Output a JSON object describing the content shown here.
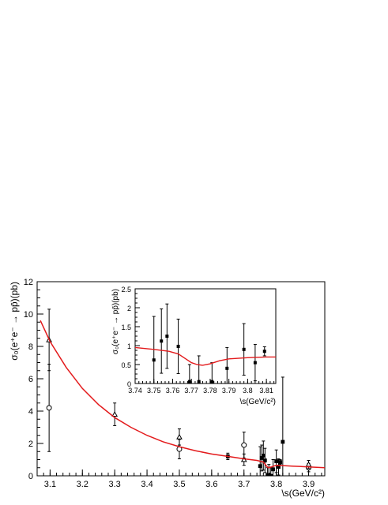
{
  "chart_data": [
    {
      "type": "scatter",
      "role": "main",
      "xlabel": "\\s(GeV/c²)",
      "ylabel": "σ₀(e⁺e⁻ → pp̄)(pb)",
      "xlim": [
        3.06,
        3.95
      ],
      "ylim": [
        0,
        12
      ],
      "xticks": [
        "3.1",
        "3.2",
        "3.3",
        "3.4",
        "3.5",
        "3.6",
        "3.7",
        "3.8",
        "3.9"
      ],
      "yticks": [
        "0",
        "2",
        "4",
        "6",
        "8",
        "10",
        "12"
      ],
      "grid": false,
      "series": [
        {
          "marker": "open-circle",
          "points": [
            {
              "x": 3.097,
              "y": 4.2,
              "err": 2.7
            },
            {
              "x": 3.5,
              "y": 1.65,
              "err": 0.6
            },
            {
              "x": 3.7,
              "y": 1.9,
              "err": 0.8
            },
            {
              "x": 3.9,
              "y": 0.5,
              "err": 0.25
            }
          ]
        },
        {
          "marker": "open-triangle",
          "points": [
            {
              "x": 3.097,
              "y": 8.4,
              "err": 1.9
            },
            {
              "x": 3.3,
              "y": 3.8,
              "err": 0.7
            },
            {
              "x": 3.5,
              "y": 2.4,
              "err": 0.5
            },
            {
              "x": 3.7,
              "y": 1.0,
              "err": 0.35
            },
            {
              "x": 3.9,
              "y": 0.7,
              "err": 0.25
            }
          ]
        },
        {
          "marker": "filled-square",
          "points": [
            {
              "x": 3.65,
              "y": 1.2,
              "err": 0.2
            },
            {
              "x": 3.75,
              "y": 0.6,
              "err": 1.2
            },
            {
              "x": 3.755,
              "y": 1.1,
              "err": 0.8
            },
            {
              "x": 3.76,
              "y": 1.25,
              "err": 0.9
            },
            {
              "x": 3.765,
              "y": 0.95,
              "err": 0.75
            },
            {
              "x": 3.773,
              "y": 0.05,
              "err": 0.45
            },
            {
              "x": 3.777,
              "y": 0.0,
              "err": 0.7
            },
            {
              "x": 3.783,
              "y": 0.0,
              "err": 0.5
            },
            {
              "x": 3.79,
              "y": 0.4,
              "err": 0.6
            },
            {
              "x": 3.8,
              "y": 0.9,
              "err": 0.7
            },
            {
              "x": 3.807,
              "y": 0.55,
              "err": 0.5
            },
            {
              "x": 3.812,
              "y": 0.85,
              "err": 0.15
            },
            {
              "x": 3.82,
              "y": 2.1,
              "err": 4.0
            }
          ]
        },
        {
          "type": "line",
          "color": "#e31a1c",
          "points": [
            {
              "x": 3.07,
              "y": 9.6
            },
            {
              "x": 3.1,
              "y": 8.3
            },
            {
              "x": 3.15,
              "y": 6.7
            },
            {
              "x": 3.2,
              "y": 5.4
            },
            {
              "x": 3.25,
              "y": 4.4
            },
            {
              "x": 3.3,
              "y": 3.6
            },
            {
              "x": 3.35,
              "y": 3.0
            },
            {
              "x": 3.4,
              "y": 2.5
            },
            {
              "x": 3.45,
              "y": 2.1
            },
            {
              "x": 3.5,
              "y": 1.8
            },
            {
              "x": 3.55,
              "y": 1.55
            },
            {
              "x": 3.6,
              "y": 1.35
            },
            {
              "x": 3.65,
              "y": 1.2
            },
            {
              "x": 3.7,
              "y": 1.05
            },
            {
              "x": 3.74,
              "y": 0.95
            },
            {
              "x": 3.76,
              "y": 0.85
            },
            {
              "x": 3.77,
              "y": 0.6
            },
            {
              "x": 3.775,
              "y": 0.5
            },
            {
              "x": 3.785,
              "y": 0.55
            },
            {
              "x": 3.8,
              "y": 0.65
            },
            {
              "x": 3.85,
              "y": 0.6
            },
            {
              "x": 3.9,
              "y": 0.55
            },
            {
              "x": 3.95,
              "y": 0.5
            }
          ]
        }
      ]
    },
    {
      "type": "scatter",
      "role": "inset",
      "xlabel": "\\s(GeV/c²)",
      "ylabel": "σ₀(e⁺e⁻ → pp̄)(pb)",
      "xlim": [
        3.74,
        3.815
      ],
      "ylim": [
        0,
        2.5
      ],
      "xticks": [
        "3.74",
        "3.75",
        "3.76",
        "3.77",
        "3.78",
        "3.79",
        "3.8",
        "3.81"
      ],
      "yticks": [
        "0",
        "0.5",
        "1",
        "1.5",
        "2",
        "2.5"
      ],
      "grid": false,
      "series": [
        {
          "marker": "filled-square",
          "points": [
            {
              "x": 3.75,
              "y": 0.62,
              "err": 1.15
            },
            {
              "x": 3.754,
              "y": 1.12,
              "err": 0.85
            },
            {
              "x": 3.757,
              "y": 1.25,
              "err": 0.85
            },
            {
              "x": 3.763,
              "y": 0.98,
              "err": 0.72
            },
            {
              "x": 3.769,
              "y": 0.05,
              "err": 0.45
            },
            {
              "x": 3.774,
              "y": 0.05,
              "err": 0.68
            },
            {
              "x": 3.781,
              "y": 0.05,
              "err": 0.5
            },
            {
              "x": 3.789,
              "y": 0.4,
              "err": 0.55
            },
            {
              "x": 3.798,
              "y": 0.9,
              "err": 0.68
            },
            {
              "x": 3.804,
              "y": 0.55,
              "err": 0.48
            },
            {
              "x": 3.809,
              "y": 0.85,
              "err": 0.12
            }
          ]
        },
        {
          "type": "line",
          "color": "#e31a1c",
          "points": [
            {
              "x": 3.74,
              "y": 0.95
            },
            {
              "x": 3.75,
              "y": 0.9
            },
            {
              "x": 3.758,
              "y": 0.85
            },
            {
              "x": 3.763,
              "y": 0.78
            },
            {
              "x": 3.767,
              "y": 0.65
            },
            {
              "x": 3.77,
              "y": 0.55
            },
            {
              "x": 3.773,
              "y": 0.5
            },
            {
              "x": 3.776,
              "y": 0.48
            },
            {
              "x": 3.78,
              "y": 0.52
            },
            {
              "x": 3.785,
              "y": 0.6
            },
            {
              "x": 3.79,
              "y": 0.65
            },
            {
              "x": 3.8,
              "y": 0.68
            },
            {
              "x": 3.81,
              "y": 0.7
            },
            {
              "x": 3.815,
              "y": 0.7
            }
          ]
        }
      ]
    }
  ]
}
